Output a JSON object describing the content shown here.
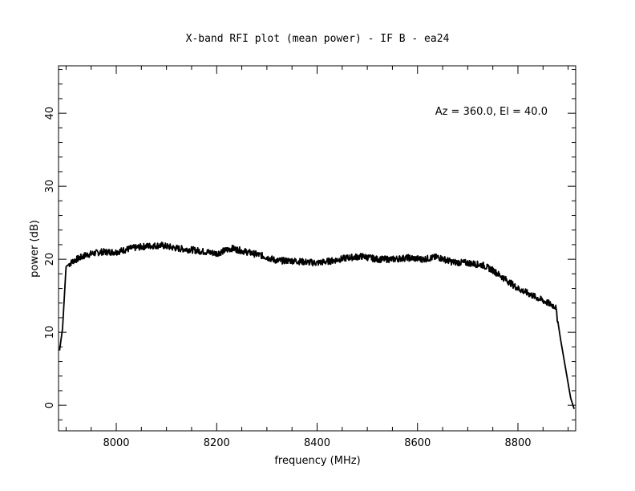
{
  "chart_data": {
    "type": "line",
    "title": "X-band RFI plot (mean power) - IF B - ea24",
    "xlabel": "frequency (MHz)",
    "ylabel": "power (dB)",
    "annotation": "Az = 360.0, El = 40.0",
    "xlim": [
      7885,
      8915
    ],
    "ylim": [
      -3.5,
      46.5
    ],
    "x_ticks": [
      8000,
      8200,
      8400,
      8600,
      8800
    ],
    "y_ticks": [
      0,
      10,
      20,
      30,
      40
    ],
    "x_tick_labels": [
      "8000",
      "8200",
      "8400",
      "8600",
      "8800"
    ],
    "y_tick_labels": [
      "0",
      "10",
      "20",
      "30",
      "40"
    ],
    "grid": false,
    "line_color": "#000000",
    "series": [
      {
        "x": [
          7887,
          7893,
          7900,
          7915,
          7940,
          7970,
          8000,
          8030,
          8060,
          8090,
          8120,
          8150,
          8180,
          8200,
          8230,
          8260,
          8290,
          8320,
          8350,
          8380,
          8400,
          8430,
          8460,
          8490,
          8520,
          8550,
          8580,
          8610,
          8640,
          8670,
          8700,
          8730,
          8750,
          8780,
          8800,
          8830,
          8860,
          8875,
          8885,
          8895,
          8905,
          8912
        ],
        "y": [
          7.5,
          10.5,
          19.0,
          19.8,
          20.6,
          21.0,
          21.0,
          21.5,
          21.8,
          21.9,
          21.5,
          21.3,
          21.0,
          20.8,
          21.5,
          21.0,
          20.5,
          19.8,
          19.8,
          19.6,
          19.5,
          19.8,
          20.2,
          20.4,
          20.0,
          20.0,
          20.2,
          20.0,
          20.3,
          19.6,
          19.5,
          19.2,
          18.5,
          17.0,
          16.0,
          15.0,
          14.0,
          13.5,
          9.0,
          5.0,
          1.0,
          -0.5
        ]
      }
    ]
  }
}
